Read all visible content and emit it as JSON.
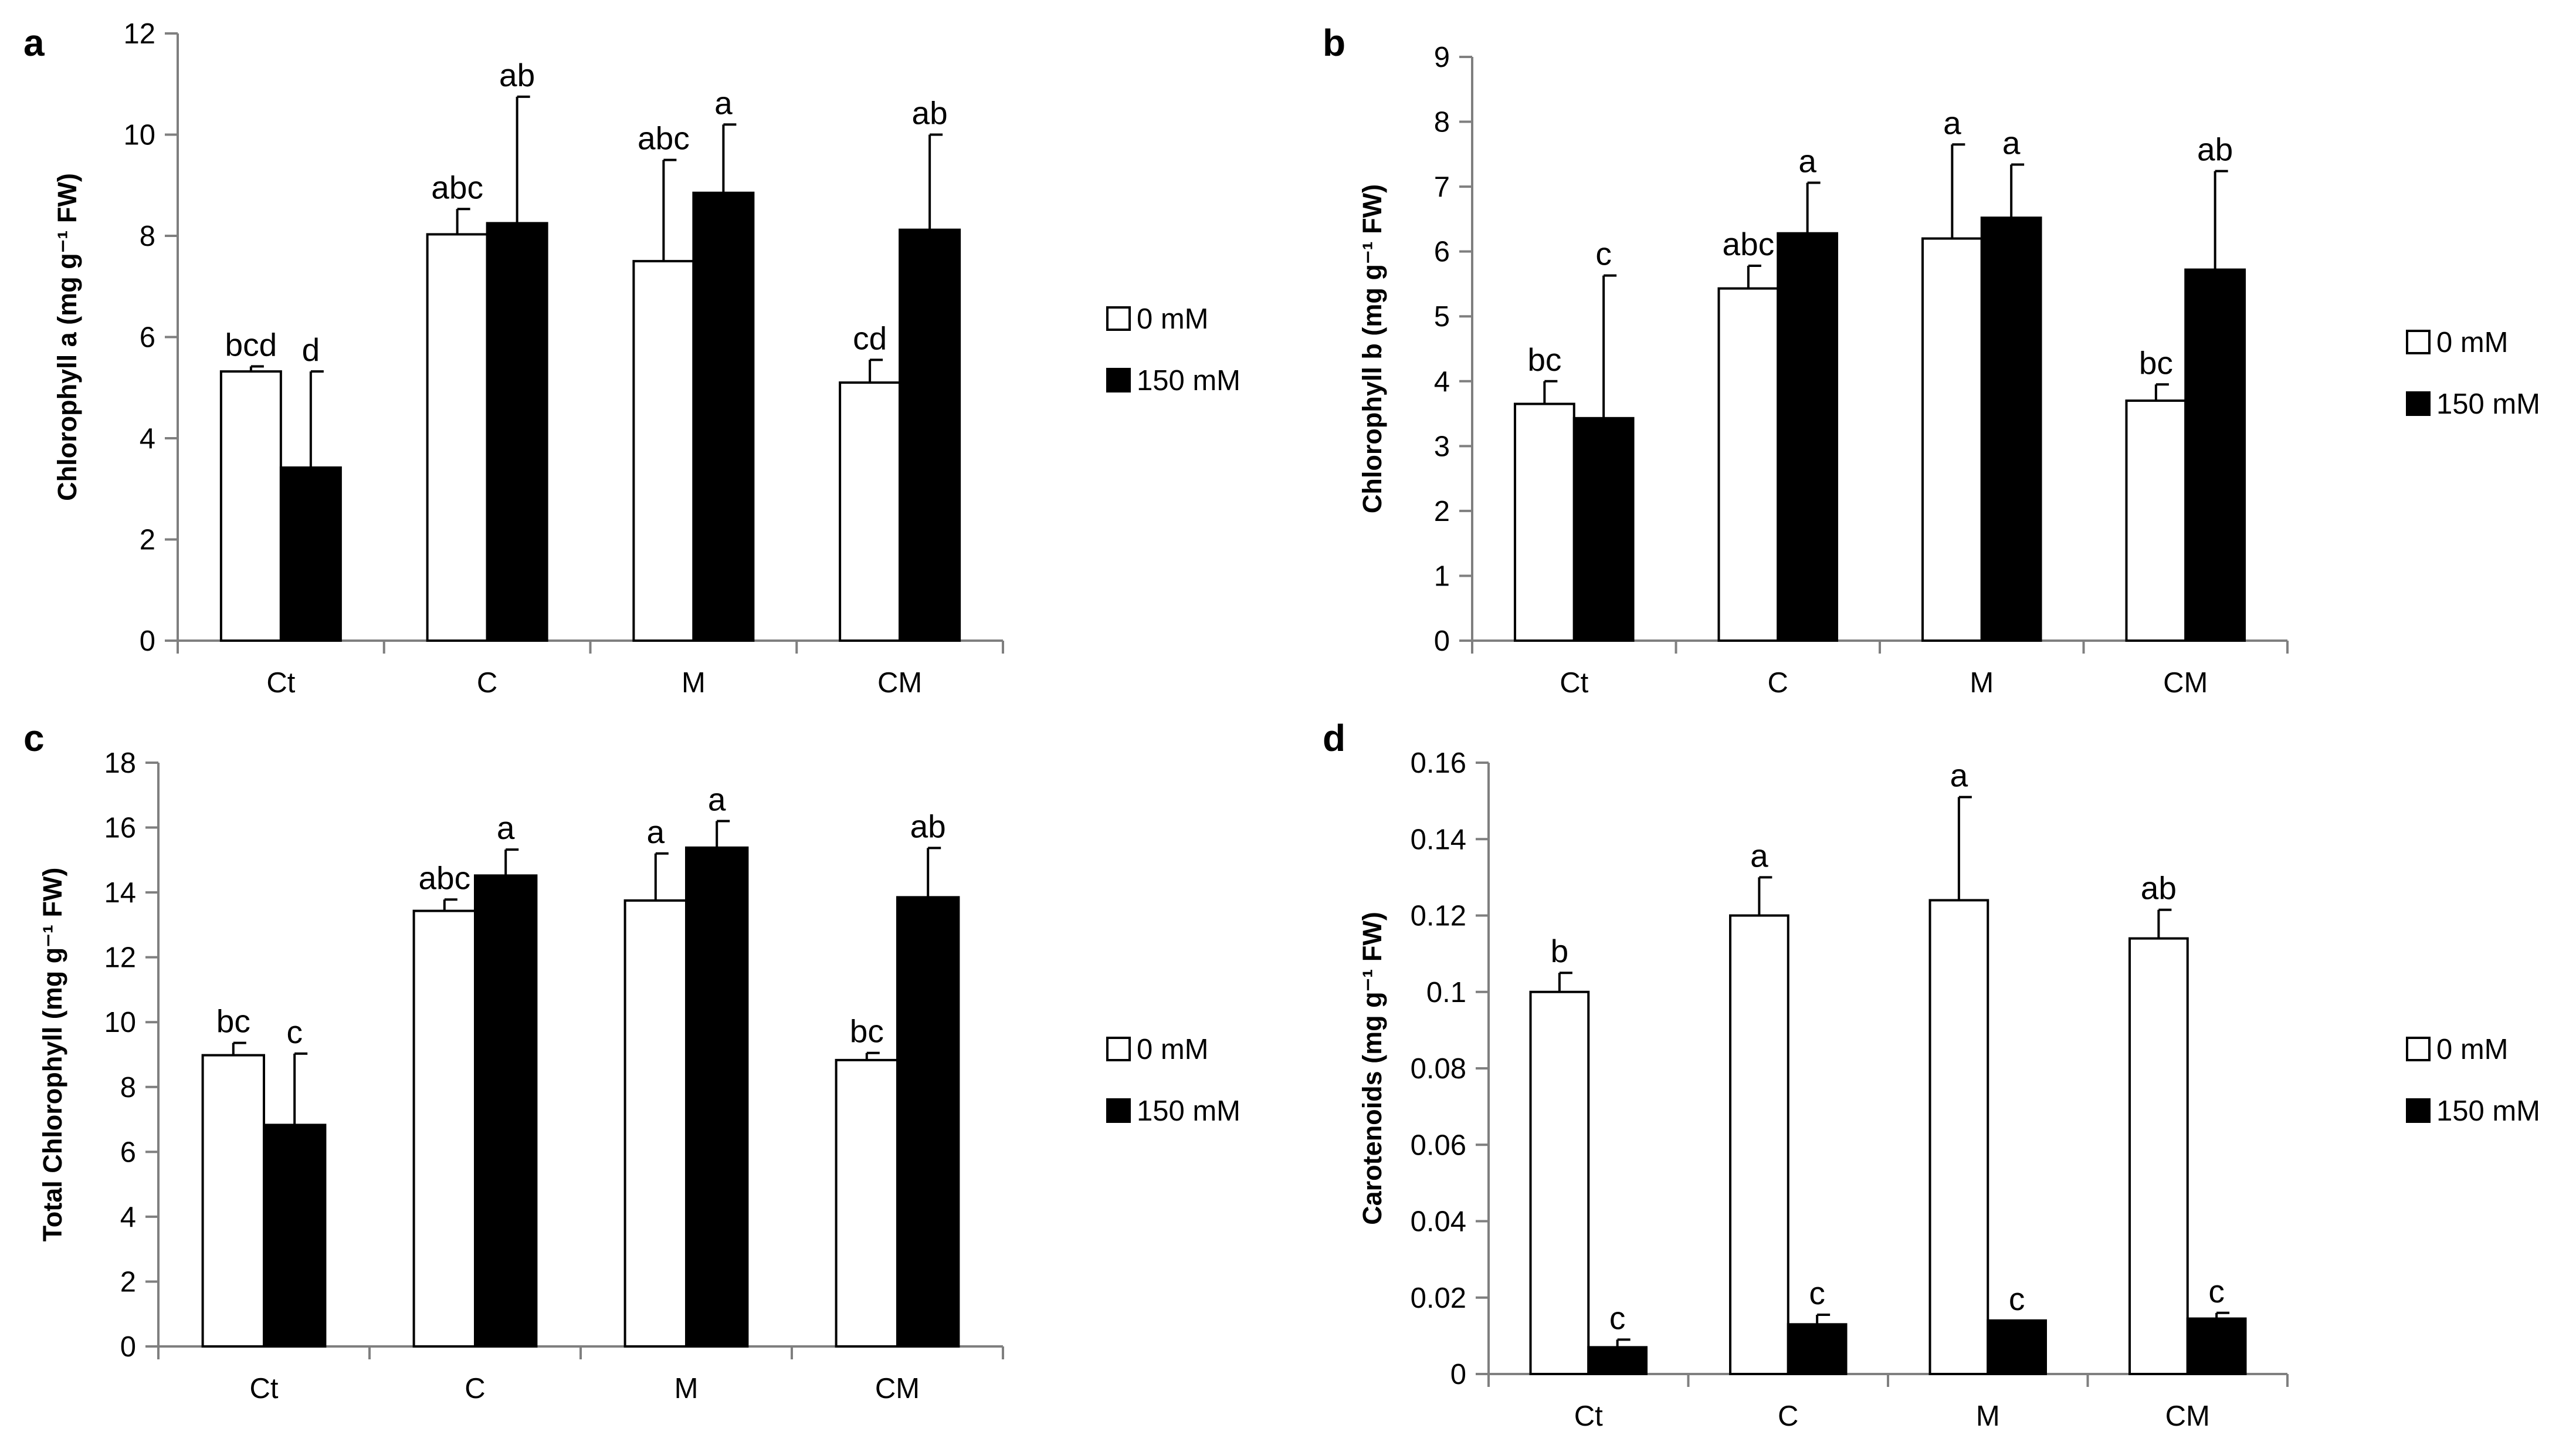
{
  "figure": {
    "legend": {
      "series_0": "0 mM",
      "series_1": "150 mM"
    },
    "colors": {
      "series_0": "#ffffff",
      "series_1": "#000000",
      "axis": "#7f7f7f",
      "text": "#000000"
    }
  },
  "chart_data": [
    {
      "panel": "a",
      "type": "bar",
      "title": "",
      "xlabel": "",
      "ylabel": "Chlorophyll a (mg g⁻¹ FW)",
      "ylim": [
        0,
        12
      ],
      "yticks": [
        0,
        2,
        4,
        6,
        8,
        10,
        12
      ],
      "ytick_labels": [
        "0",
        "2",
        "4",
        "6",
        "8",
        "10",
        "12"
      ],
      "categories": [
        "Ct",
        "C",
        "M",
        "CM"
      ],
      "legend_position": "right",
      "series": [
        {
          "name": "0 mM",
          "values": [
            5.32,
            8.03,
            7.5,
            5.1
          ],
          "errors": [
            0.1,
            0.5,
            2.0,
            0.45
          ],
          "labels": [
            "bcd",
            "abc",
            "abc",
            "cd"
          ]
        },
        {
          "name": "150 mM",
          "values": [
            3.42,
            8.25,
            8.85,
            8.12
          ],
          "errors": [
            1.9,
            2.5,
            1.35,
            1.88
          ],
          "labels": [
            "d",
            "ab",
            "a",
            "ab"
          ]
        }
      ]
    },
    {
      "panel": "b",
      "type": "bar",
      "title": "",
      "xlabel": "",
      "ylabel": "Chlorophyll b (mg g⁻¹ FW)",
      "ylim": [
        0,
        9
      ],
      "yticks": [
        0,
        1,
        2,
        3,
        4,
        5,
        6,
        7,
        8,
        9
      ],
      "ytick_labels": [
        "0",
        "1",
        "2",
        "3",
        "4",
        "5",
        "6",
        "7",
        "8",
        "9"
      ],
      "categories": [
        "Ct",
        "C",
        "M",
        "CM"
      ],
      "legend_position": "right",
      "series": [
        {
          "name": "0 mM",
          "values": [
            3.65,
            5.43,
            6.2,
            3.7
          ],
          "errors": [
            0.35,
            0.35,
            1.45,
            0.25
          ],
          "labels": [
            "bc",
            "abc",
            "a",
            "bc"
          ]
        },
        {
          "name": "150 mM",
          "values": [
            3.43,
            6.28,
            6.52,
            5.72
          ],
          "errors": [
            2.2,
            0.78,
            0.82,
            1.52
          ],
          "labels": [
            "c",
            "a",
            "a",
            "ab"
          ]
        }
      ]
    },
    {
      "panel": "c",
      "type": "bar",
      "title": "",
      "xlabel": "",
      "ylabel": "Total Chlorophyll  (mg g⁻¹ FW)",
      "ylim": [
        0,
        18
      ],
      "yticks": [
        0,
        2,
        4,
        6,
        8,
        10,
        12,
        14,
        16,
        18
      ],
      "ytick_labels": [
        "0",
        "2",
        "4",
        "6",
        "8",
        "10",
        "12",
        "14",
        "16",
        "18"
      ],
      "categories": [
        "Ct",
        "C",
        "M",
        "CM"
      ],
      "legend_position": "right",
      "series": [
        {
          "name": "0 mM",
          "values": [
            8.98,
            13.43,
            13.75,
            8.83
          ],
          "errors": [
            0.38,
            0.35,
            1.45,
            0.22
          ],
          "labels": [
            "bc",
            "abc",
            "a",
            "bc"
          ]
        },
        {
          "name": "150 mM",
          "values": [
            6.83,
            14.52,
            15.38,
            13.85
          ],
          "errors": [
            2.2,
            0.8,
            0.82,
            1.52
          ],
          "labels": [
            "c",
            "a",
            "a",
            "ab"
          ]
        }
      ]
    },
    {
      "panel": "d",
      "type": "bar",
      "title": "",
      "xlabel": "",
      "ylabel": "Carotenoids (mg g⁻¹ FW)",
      "ylim": [
        0,
        0.16
      ],
      "yticks": [
        0,
        0.02,
        0.04,
        0.06,
        0.08,
        0.1,
        0.12,
        0.14,
        0.16
      ],
      "ytick_labels": [
        "0",
        "0.02",
        "0.04",
        "0.06",
        "0.08",
        "0.1",
        "0.12",
        "0.14",
        "0.16"
      ],
      "categories": [
        "Ct",
        "C",
        "M",
        "CM"
      ],
      "legend_position": "right",
      "series": [
        {
          "name": "0 mM",
          "values": [
            0.1,
            0.12,
            0.124,
            0.114
          ],
          "errors": [
            0.005,
            0.01,
            0.027,
            0.0075
          ],
          "labels": [
            "b",
            "a",
            "a",
            "ab"
          ]
        },
        {
          "name": "150 mM",
          "values": [
            0.007,
            0.013,
            0.014,
            0.0145
          ],
          "errors": [
            0.002,
            0.0025,
            0.0,
            0.0015
          ],
          "labels": [
            "c",
            "c",
            "c",
            "c"
          ]
        }
      ]
    }
  ]
}
